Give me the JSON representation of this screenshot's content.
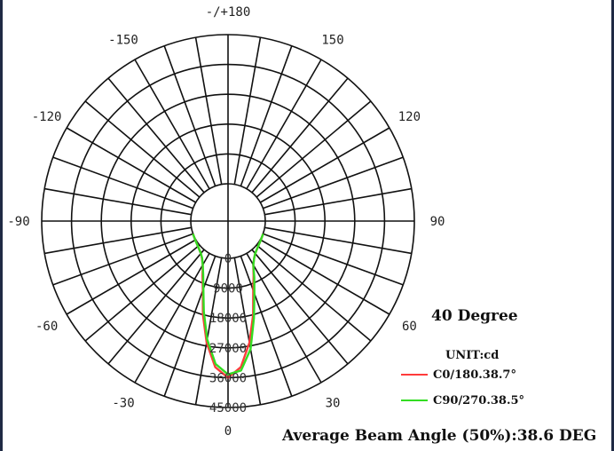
{
  "chart_data": {
    "type": "polar",
    "title": "40 Degree",
    "unit_label": "UNIT:cd",
    "angle_labels": [
      {
        "angle": 180,
        "text": "-/+180"
      },
      {
        "angle": -150,
        "text": "-150"
      },
      {
        "angle": 150,
        "text": "150"
      },
      {
        "angle": -120,
        "text": "-120"
      },
      {
        "angle": 120,
        "text": "120"
      },
      {
        "angle": -90,
        "text": "-90"
      },
      {
        "angle": 90,
        "text": "90"
      },
      {
        "angle": -60,
        "text": "-60"
      },
      {
        "angle": 60,
        "text": "60"
      },
      {
        "angle": -30,
        "text": "-30"
      },
      {
        "angle": 30,
        "text": "30"
      },
      {
        "angle": 0,
        "text": "0"
      }
    ],
    "radial_max": 45000,
    "radial_ticks": [
      0,
      9000,
      18000,
      27000,
      36000,
      45000
    ],
    "radial_tick_labels": [
      "0",
      "9000",
      "18000",
      "27000",
      "36000",
      "45000"
    ],
    "angle_step": 10,
    "series": [
      {
        "name": "C0/180.38.7°",
        "color": "#ff3b3b",
        "angles": [
          -70,
          -60,
          -50,
          -40,
          -35,
          -30,
          -25,
          -20,
          -15,
          -10,
          -5,
          0,
          5,
          10,
          15,
          20,
          25,
          30,
          35,
          40,
          50,
          60,
          70
        ],
        "values": [
          0,
          200,
          600,
          1500,
          2500,
          4000,
          7000,
          11000,
          18000,
          26000,
          33000,
          36000,
          33000,
          26000,
          18000,
          11000,
          7000,
          4000,
          2500,
          1500,
          600,
          200,
          0
        ]
      },
      {
        "name": "C90/270.38.5°",
        "color": "#33dd22",
        "angles": [
          -70,
          -60,
          -50,
          -40,
          -35,
          -30,
          -25,
          -20,
          -15,
          -10,
          -5,
          0,
          5,
          10,
          15,
          20,
          25,
          30,
          35,
          40,
          50,
          60,
          70
        ],
        "values": [
          0,
          200,
          600,
          1500,
          2400,
          4000,
          6500,
          10500,
          17000,
          25000,
          32000,
          35000,
          34000,
          28000,
          19000,
          12000,
          7500,
          4000,
          2500,
          1500,
          600,
          200,
          0
        ]
      }
    ]
  },
  "footer": "Average Beam Angle (50%):38.6 DEG"
}
